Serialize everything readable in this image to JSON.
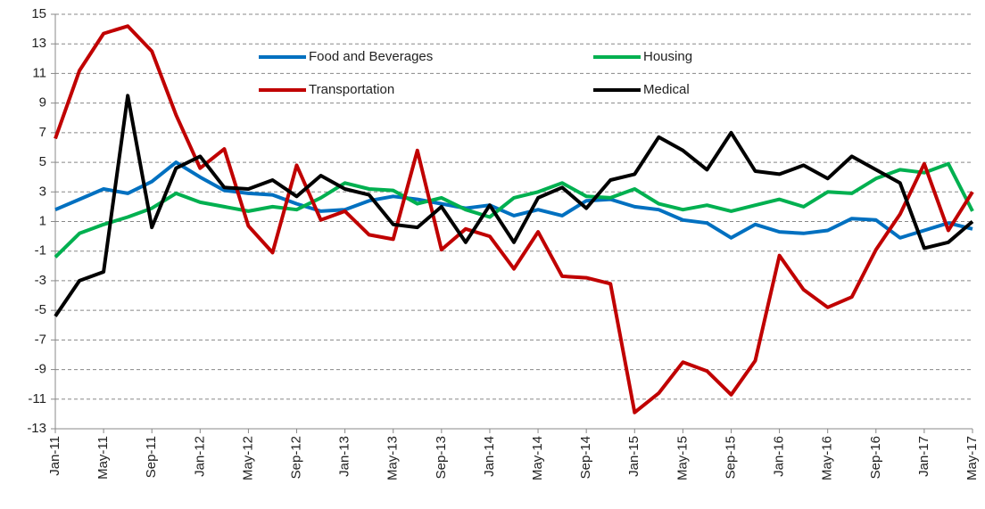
{
  "chart_data": {
    "type": "line",
    "categories": [
      "Jan-11",
      null,
      "May-11",
      null,
      "Sep-11",
      null,
      "Jan-12",
      null,
      "May-12",
      null,
      "Sep-12",
      null,
      "Jan-13",
      null,
      "May-13",
      null,
      "Sep-13",
      null,
      "Jan-14",
      null,
      "May-14",
      null,
      "Sep-14",
      null,
      "Jan-15",
      null,
      "May-15",
      null,
      "Sep-15",
      null,
      "Jan-16",
      null,
      "May-16",
      null,
      "Sep-16",
      null,
      "Jan-17",
      null,
      "May-17"
    ],
    "series": [
      {
        "name": "Food and Beverages",
        "color": "#0070c0",
        "values": [
          1.8,
          2.5,
          3.2,
          2.9,
          3.7,
          5.0,
          4.0,
          3.1,
          2.9,
          2.8,
          2.2,
          1.7,
          1.8,
          2.4,
          2.7,
          2.5,
          2.2,
          1.9,
          2.1,
          1.4,
          1.8,
          1.4,
          2.4,
          2.5,
          2.0,
          1.8,
          1.1,
          0.9,
          -0.1,
          0.8,
          0.3,
          0.2,
          0.4,
          1.2,
          1.1,
          -0.1,
          0.4,
          0.9,
          0.5
        ]
      },
      {
        "name": "Housing",
        "color": "#00b050",
        "values": [
          -1.4,
          0.2,
          0.8,
          1.3,
          1.9,
          2.9,
          2.3,
          2.0,
          1.7,
          2.0,
          1.8,
          2.6,
          3.6,
          3.2,
          3.1,
          2.2,
          2.6,
          1.8,
          1.3,
          2.6,
          3.0,
          3.6,
          2.7,
          2.6,
          3.2,
          2.2,
          1.8,
          2.1,
          1.7,
          2.1,
          2.5,
          2.0,
          3.0,
          2.9,
          3.9,
          4.5,
          4.3,
          4.9,
          1.7
        ]
      },
      {
        "name": "Transportation",
        "color": "#c00000",
        "values": [
          6.6,
          11.2,
          13.7,
          14.2,
          12.5,
          8.2,
          4.6,
          5.9,
          0.7,
          -1.1,
          4.8,
          1.1,
          1.7,
          0.1,
          -0.2,
          5.8,
          -0.9,
          0.5,
          0.0,
          -2.2,
          0.3,
          -2.7,
          -2.8,
          -3.2,
          -11.9,
          -10.6,
          -8.5,
          -9.1,
          -10.7,
          -8.4,
          -1.3,
          -3.6,
          -4.8,
          -4.1,
          -0.9,
          1.5,
          4.9,
          0.4,
          3.0
        ]
      },
      {
        "name": "Medical",
        "color": "#000000",
        "values": [
          -5.4,
          -3.0,
          -2.4,
          9.5,
          0.6,
          4.6,
          5.4,
          3.3,
          3.2,
          3.8,
          2.7,
          4.1,
          3.2,
          2.8,
          0.8,
          0.6,
          2.0,
          -0.4,
          2.1,
          -0.4,
          2.6,
          3.3,
          1.9,
          3.8,
          4.2,
          6.7,
          5.8,
          4.5,
          7.0,
          4.4,
          4.2,
          4.8,
          3.9,
          5.4,
          4.5,
          3.6,
          -0.8,
          -0.4,
          1.0
        ]
      }
    ],
    "ylim": [
      -13,
      15
    ],
    "yticks": [
      -13,
      -11,
      -9,
      -7,
      -5,
      -3,
      -1,
      1,
      3,
      5,
      7,
      9,
      11,
      13,
      15
    ],
    "grid": true,
    "legend": "top"
  }
}
